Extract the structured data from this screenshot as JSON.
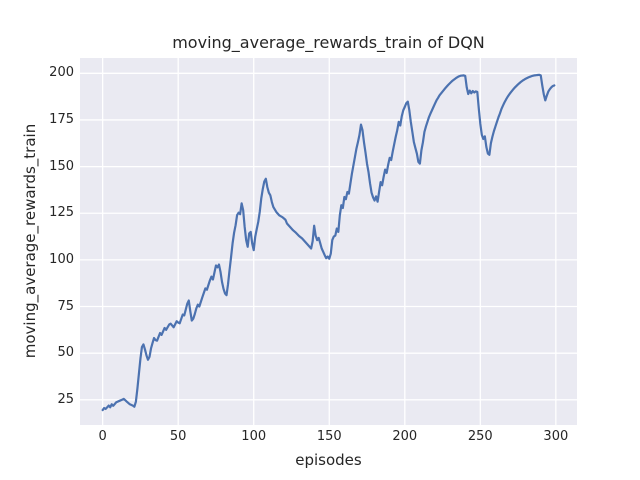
{
  "figure": {
    "title": "moving_average_rewards_train of DQN",
    "xlabel": "episodes",
    "ylabel": "moving_average_rewards_train"
  },
  "chart_data": {
    "type": "line",
    "title": "moving_average_rewards_train of DQN",
    "xlabel": "episodes",
    "ylabel": "moving_average_rewards_train",
    "xticks": [
      0,
      50,
      100,
      150,
      200,
      250,
      300
    ],
    "yticks": [
      25,
      50,
      75,
      100,
      125,
      150,
      175,
      200
    ],
    "xlim": [
      -15,
      314
    ],
    "ylim": [
      11.5,
      208.2
    ],
    "grid": true,
    "legend": false,
    "colors": {
      "line": "#4C72B0",
      "plot_background": "#EAEAF2",
      "gridline": "#FFFFFF",
      "text": "#262626",
      "figure_background": "#FFFFFF"
    },
    "series": [
      {
        "name": "moving_average_rewards_train",
        "x": [
          0,
          1,
          2,
          4,
          5,
          6,
          7,
          9,
          11,
          13,
          14,
          16,
          18,
          20,
          21,
          22,
          23,
          24,
          25,
          26,
          27,
          28,
          29,
          30,
          31,
          32,
          33,
          34,
          35,
          36,
          38,
          39,
          41,
          42,
          44,
          45,
          47,
          49,
          50,
          51,
          53,
          54,
          56,
          57,
          58,
          59,
          60,
          61,
          62,
          63,
          64,
          66,
          68,
          69,
          71,
          72,
          73,
          75,
          76,
          77,
          78,
          79,
          80,
          81,
          82,
          83,
          84,
          85,
          86,
          87,
          88,
          89,
          90,
          91,
          92,
          93,
          94,
          95,
          96,
          97,
          98,
          99,
          100,
          101,
          102,
          103,
          104,
          105,
          106,
          107,
          108,
          109,
          110,
          111,
          112,
          113,
          115,
          117,
          119,
          121,
          122,
          124,
          126,
          128,
          130,
          132,
          134,
          136,
          138,
          139,
          140,
          141,
          142,
          143,
          144,
          145,
          146,
          147,
          148,
          149,
          150,
          151,
          152,
          153,
          154,
          155,
          156,
          157,
          158,
          159,
          160,
          161,
          162,
          163,
          164,
          165,
          166,
          167,
          168,
          169,
          170,
          171,
          172,
          173,
          174,
          175,
          176,
          177,
          178,
          179,
          180,
          181,
          182,
          183,
          184,
          185,
          186,
          187,
          188,
          189,
          190,
          191,
          192,
          193,
          194,
          195,
          196,
          197,
          198,
          199,
          200,
          201,
          202,
          203,
          204,
          205,
          206,
          207,
          208,
          209,
          210,
          211,
          212,
          213,
          214,
          215,
          216,
          217,
          218,
          219,
          220,
          221,
          222,
          223,
          224,
          225,
          226,
          227,
          228,
          229,
          230,
          231,
          232,
          233,
          234,
          235,
          236,
          237,
          238,
          239,
          240,
          241,
          242,
          243,
          244,
          245,
          246,
          247,
          248,
          249,
          250,
          251,
          252,
          253,
          254,
          255,
          256,
          257,
          258,
          259,
          260,
          261,
          262,
          263,
          264,
          265,
          266,
          267,
          268,
          269,
          270,
          271,
          272,
          273,
          274,
          275,
          276,
          277,
          278,
          279,
          280,
          281,
          282,
          283,
          284,
          285,
          286,
          287,
          288,
          289,
          290,
          291,
          292,
          293,
          294,
          295,
          296,
          297,
          298,
          299
        ],
        "y": [
          19.5,
          20.6,
          20.1,
          21.9,
          21.0,
          22.6,
          21.8,
          23.7,
          24.4,
          25.1,
          25.5,
          24.0,
          22.6,
          21.9,
          21.3,
          24.0,
          31.0,
          39.0,
          47.0,
          53.3,
          54.7,
          52.0,
          48.8,
          46.5,
          48.0,
          52.5,
          55.4,
          58.1,
          57.0,
          56.7,
          60.8,
          59.8,
          63.5,
          62.5,
          65.3,
          65.8,
          63.9,
          67.1,
          66.4,
          66.0,
          70.7,
          70.2,
          76.5,
          78.2,
          72.5,
          67.5,
          68.5,
          71.0,
          74.0,
          76.0,
          75.0,
          80.0,
          84.7,
          84.0,
          89.0,
          91.0,
          89.5,
          97.0,
          96.0,
          97.5,
          93.6,
          88.2,
          84.5,
          82.0,
          81.1,
          87.0,
          94.5,
          101.5,
          108.8,
          114.5,
          118.6,
          124.0,
          125.3,
          124.5,
          130.3,
          126.7,
          117.7,
          110.6,
          107.0,
          114.2,
          115.0,
          108.8,
          105.2,
          112.4,
          116.5,
          120.4,
          125.8,
          133.0,
          138.0,
          142.0,
          143.5,
          139.0,
          136.0,
          134.6,
          131.0,
          128.3,
          125.6,
          123.8,
          122.9,
          121.5,
          119.5,
          117.7,
          115.9,
          114.5,
          112.8,
          111.5,
          109.7,
          107.9,
          106.1,
          110.0,
          118.3,
          113.0,
          110.6,
          111.8,
          109.0,
          106.1,
          104.3,
          102.5,
          100.9,
          101.8,
          100.6,
          103.3,
          110.6,
          112.5,
          113.0,
          116.8,
          115.0,
          123.9,
          129.3,
          127.8,
          133.7,
          132.5,
          136.4,
          135.5,
          140.9,
          146.2,
          150.7,
          155.2,
          159.7,
          163.2,
          167.0,
          172.5,
          169.5,
          163.0,
          157.5,
          151.5,
          147.0,
          141.0,
          136.0,
          133.5,
          131.8,
          134.0,
          131.2,
          136.5,
          141.7,
          140.0,
          144.5,
          148.4,
          146.6,
          151.0,
          154.7,
          153.5,
          158.0,
          162.0,
          166.0,
          169.5,
          174.0,
          172.0,
          177.0,
          180.2,
          182.0,
          184.0,
          184.8,
          180.2,
          173.9,
          168.6,
          163.2,
          160.0,
          157.0,
          152.5,
          151.6,
          158.7,
          163.0,
          168.6,
          171.5,
          174.0,
          176.5,
          178.4,
          180.2,
          182.0,
          183.8,
          185.5,
          186.8,
          188.2,
          189.2,
          190.2,
          191.2,
          192.2,
          193.1,
          194.0,
          194.8,
          195.6,
          196.3,
          196.9,
          197.5,
          198.0,
          198.4,
          198.7,
          198.8,
          198.9,
          198.6,
          192.5,
          188.9,
          190.7,
          189.3,
          190.5,
          189.7,
          190.3,
          190.0,
          181.0,
          172.9,
          167.0,
          164.8,
          166.2,
          160.5,
          157.0,
          156.3,
          162.5,
          166.0,
          169.0,
          171.5,
          174.0,
          176.4,
          178.5,
          180.9,
          182.7,
          184.4,
          185.9,
          187.3,
          188.5,
          189.6,
          190.6,
          191.6,
          192.5,
          193.3,
          194.1,
          194.8,
          195.5,
          196.1,
          196.6,
          197.1,
          197.5,
          197.9,
          198.2,
          198.5,
          198.7,
          198.9,
          199.0,
          199.1,
          199.2,
          198.9,
          193.5,
          188.8,
          185.5,
          188.0,
          190.2,
          191.5,
          192.5,
          193.2,
          193.5
        ]
      }
    ]
  }
}
